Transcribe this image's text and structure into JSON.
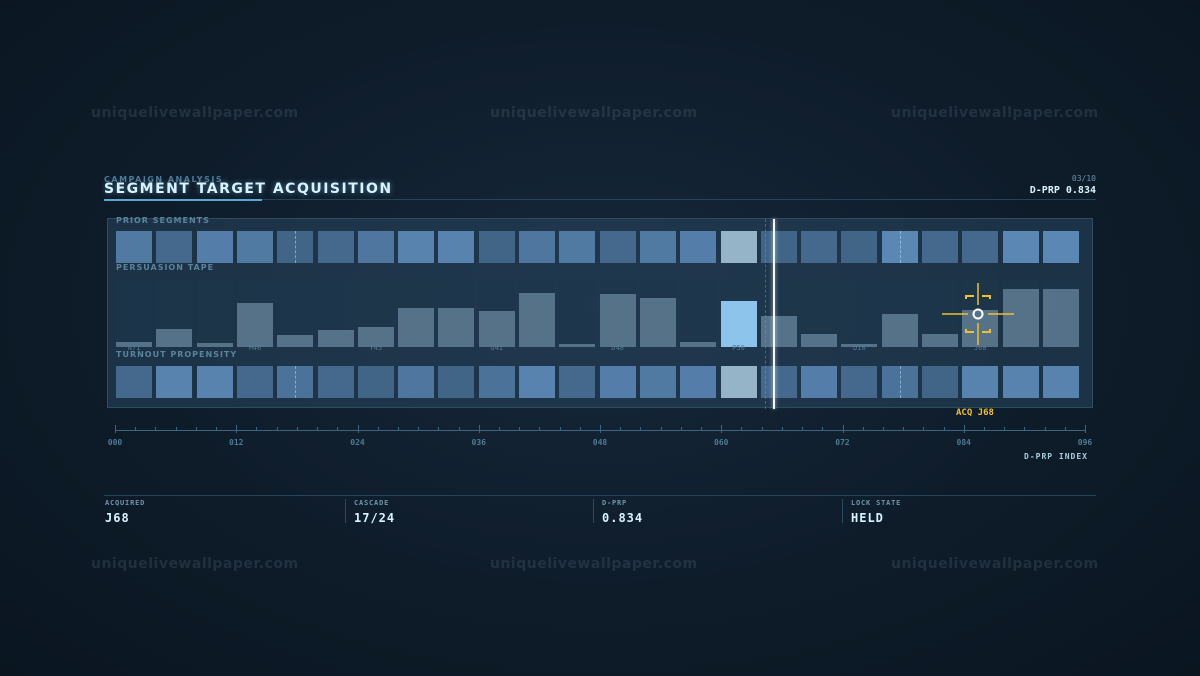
{
  "watermark": "uniquelivewallpaper.com",
  "header": {
    "subtitle": "CAMPAIGN ANALYSIS",
    "title": "SEGMENT TARGET ACQUISITION",
    "page": "03/10",
    "dprp": "D-PRP 0.834"
  },
  "rows": {
    "prior_label": "PRIOR SEGMENTS",
    "tape_label": "PERSUASION TAPE",
    "turnout_label": "TURNOUT PROPENSITY"
  },
  "segments": {
    "prior_levels": [
      0.55,
      0.35,
      0.6,
      0.55,
      0.3,
      0.35,
      0.5,
      0.65,
      0.65,
      0.3,
      0.5,
      0.55,
      0.35,
      0.55,
      0.6,
      0.75,
      0.3,
      0.35,
      0.3,
      0.7,
      0.35,
      0.35,
      0.7,
      0.7
    ],
    "tape_values": [
      0.08,
      0.26,
      0.06,
      0.64,
      0.17,
      0.25,
      0.3,
      0.58,
      0.58,
      0.53,
      0.8,
      0.05,
      0.78,
      0.72,
      0.08,
      0.68,
      0.46,
      0.19,
      0.05,
      0.49,
      0.19,
      0.55,
      0.85,
      0.85
    ],
    "turnout_levels": [
      0.35,
      0.65,
      0.65,
      0.35,
      0.45,
      0.35,
      0.3,
      0.5,
      0.3,
      0.45,
      0.65,
      0.35,
      0.6,
      0.55,
      0.6,
      0.75,
      0.35,
      0.6,
      0.35,
      0.45,
      0.3,
      0.65,
      0.65,
      0.65
    ],
    "tape_labels": [
      {
        "text": "N71",
        "col": 0
      },
      {
        "text": "M46",
        "col": 3
      },
      {
        "text": "Y45",
        "col": 6
      },
      {
        "text": "U41",
        "col": 9
      },
      {
        "text": "D48",
        "col": 12
      },
      {
        "text": "P50",
        "col": 15
      },
      {
        "text": "D18",
        "col": 18
      },
      {
        "text": "J68",
        "col": 21
      }
    ],
    "dashed_cols": [
      4,
      19
    ],
    "current_col": 15,
    "cursor_fraction": 0.68
  },
  "axis": {
    "ticks": [
      "000",
      "012",
      "024",
      "036",
      "048",
      "060",
      "072",
      "084",
      "096"
    ],
    "title": "D-PRP INDEX"
  },
  "target": {
    "label": "ACQ J68",
    "color": "#f0c030"
  },
  "stats": [
    {
      "key": "ACQUIRED",
      "value": "J68"
    },
    {
      "key": "CASCADE",
      "value": "17/24"
    },
    {
      "key": "D-PRP",
      "value": "0.834"
    },
    {
      "key": "LOCK STATE",
      "value": "HELD"
    }
  ],
  "colors": {
    "accent": "#5aa7d4",
    "cell_dim": "#2f4e65",
    "cell_bright": "#6aa3d8",
    "current": "#8fb0c8",
    "tape_hi": "#8cc4ec"
  }
}
